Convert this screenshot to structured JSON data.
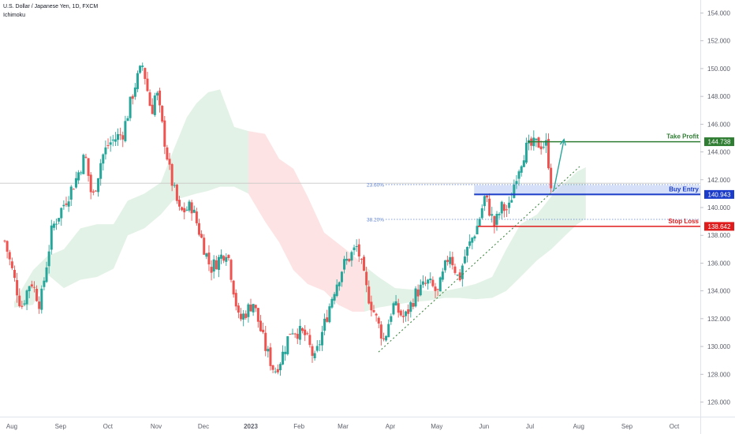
{
  "header": {
    "symbol_line": "U.S. Dollar / Japanese Yen, 1D, FXCM",
    "indicator": "Ichimoku"
  },
  "colors": {
    "up": "#26a69a",
    "down": "#ef5350",
    "cloud_bull": "#e3f2e6",
    "cloud_bear": "#fde3e3",
    "take_profit": "#2e7d32",
    "buy_entry": "#1a3cc8",
    "buy_zone": "#c9d6f7",
    "stop_loss": "#e01b1b",
    "fib": "#5b7fd4",
    "trendline": "#2e7d32",
    "arrow": "#26a69a",
    "axis_text": "#5d606b",
    "crosshair": "#c7c7c7"
  },
  "chart_data": {
    "type": "candlestick",
    "title": "U.S. Dollar / Japanese Yen, 1D, FXCM",
    "indicator": "Ichimoku",
    "ylim": [
      124.8,
      154.8
    ],
    "y_ticks": [
      "126.000",
      "128.000",
      "130.000",
      "132.000",
      "134.000",
      "136.000",
      "138.000",
      "140.000",
      "142.000",
      "144.000",
      "146.000",
      "148.000",
      "150.000",
      "152.000",
      "154.000"
    ],
    "x_ticks": [
      {
        "label": "Aug",
        "t": 0.15
      },
      {
        "label": "Sep",
        "t": 1.18
      },
      {
        "label": "Oct",
        "t": 2.18
      },
      {
        "label": "Nov",
        "t": 3.2
      },
      {
        "label": "Dec",
        "t": 4.2
      },
      {
        "label": "2023",
        "t": 5.2
      },
      {
        "label": "Feb",
        "t": 6.22
      },
      {
        "label": "Mar",
        "t": 7.15
      },
      {
        "label": "Apr",
        "t": 8.15
      },
      {
        "label": "May",
        "t": 9.13
      },
      {
        "label": "Jun",
        "t": 10.13
      },
      {
        "label": "Jul",
        "t": 11.1
      },
      {
        "label": "Aug",
        "t": 12.13
      },
      {
        "label": "Sep",
        "t": 13.15
      },
      {
        "label": "Oct",
        "t": 14.15
      }
    ],
    "t_range": [
      -0.1,
      14.7
    ],
    "price_path": [
      [
        0.0,
        137.6
      ],
      [
        0.35,
        132.8
      ],
      [
        0.55,
        134.8
      ],
      [
        0.75,
        133.0
      ],
      [
        1.0,
        138.5
      ],
      [
        1.5,
        142.0
      ],
      [
        1.7,
        143.8
      ],
      [
        1.85,
        140.5
      ],
      [
        2.05,
        143.6
      ],
      [
        2.2,
        144.6
      ],
      [
        2.5,
        145.4
      ],
      [
        2.75,
        148.8
      ],
      [
        2.92,
        150.3
      ],
      [
        3.1,
        146.8
      ],
      [
        3.2,
        148.5
      ],
      [
        3.5,
        142.3
      ],
      [
        3.7,
        139.6
      ],
      [
        3.95,
        140.1
      ],
      [
        4.35,
        135.6
      ],
      [
        4.7,
        137.0
      ],
      [
        4.95,
        131.8
      ],
      [
        5.25,
        133.2
      ],
      [
        5.5,
        130.0
      ],
      [
        5.7,
        128.2
      ],
      [
        5.85,
        129.2
      ],
      [
        6.05,
        131.3
      ],
      [
        6.35,
        130.8
      ],
      [
        6.55,
        129.0
      ],
      [
        6.95,
        134.0
      ],
      [
        7.15,
        135.8
      ],
      [
        7.45,
        137.2
      ],
      [
        7.65,
        134.0
      ],
      [
        7.9,
        131.5
      ],
      [
        8.02,
        130.4
      ],
      [
        8.2,
        133.0
      ],
      [
        8.45,
        132.0
      ],
      [
        8.7,
        133.9
      ],
      [
        8.95,
        134.6
      ],
      [
        9.15,
        133.8
      ],
      [
        9.4,
        136.8
      ],
      [
        9.6,
        134.7
      ],
      [
        9.7,
        136.3
      ],
      [
        10.0,
        138.8
      ],
      [
        10.15,
        140.8
      ],
      [
        10.35,
        138.7
      ],
      [
        10.5,
        140.0
      ],
      [
        10.65,
        139.8
      ],
      [
        10.8,
        142.3
      ],
      [
        11.0,
        144.2
      ],
      [
        11.25,
        144.6
      ],
      [
        11.45,
        144.5
      ],
      [
        11.55,
        141.6
      ]
    ],
    "cloud": [
      [
        0.2,
        132.8,
        133.2
      ],
      [
        0.6,
        133.0,
        135.5
      ],
      [
        0.9,
        135.2,
        136.5
      ],
      [
        1.25,
        134.2,
        137.0
      ],
      [
        1.6,
        134.8,
        138.5
      ],
      [
        1.95,
        135.0,
        138.8
      ],
      [
        2.3,
        135.6,
        138.8
      ],
      [
        2.6,
        138.0,
        140.5
      ],
      [
        2.95,
        138.5,
        141.0
      ],
      [
        3.3,
        139.5,
        141.8
      ],
      [
        3.55,
        140.5,
        144.0
      ],
      [
        3.85,
        140.8,
        146.5
      ],
      [
        4.05,
        141.0,
        147.5
      ],
      [
        4.3,
        141.2,
        148.3
      ],
      [
        4.55,
        141.5,
        148.5
      ],
      [
        4.85,
        141.5,
        145.8
      ],
      [
        5.15,
        141.0,
        145.5
      ],
      [
        5.5,
        139.0,
        145.3
      ],
      [
        5.8,
        137.5,
        143.5
      ],
      [
        6.1,
        135.5,
        142.8
      ],
      [
        6.4,
        134.5,
        140.8
      ],
      [
        6.75,
        134.0,
        138.2
      ],
      [
        7.05,
        133.0,
        137.4
      ],
      [
        7.35,
        132.5,
        136.6
      ],
      [
        7.6,
        132.5,
        135.8
      ],
      [
        7.9,
        132.8,
        135.0
      ],
      [
        8.25,
        133.0,
        134.2
      ],
      [
        8.6,
        133.2,
        134.1
      ],
      [
        8.95,
        133.3,
        134.0
      ],
      [
        9.3,
        133.5,
        134.0
      ],
      [
        9.6,
        133.5,
        134.2
      ],
      [
        9.95,
        133.4,
        134.5
      ],
      [
        10.3,
        133.5,
        135.0
      ],
      [
        10.6,
        134.0,
        137.0
      ],
      [
        10.9,
        135.0,
        138.8
      ],
      [
        11.25,
        136.2,
        139.5
      ],
      [
        11.55,
        137.0,
        140.8
      ],
      [
        11.85,
        138.0,
        141.8
      ],
      [
        12.1,
        138.8,
        142.6
      ],
      [
        12.28,
        139.2,
        142.9
      ]
    ],
    "levels": {
      "take_profit": {
        "label": "Take Profit",
        "value": "144.738",
        "price": 144.738,
        "t_start": 11.05
      },
      "buy_entry": {
        "label": "Buy Entry",
        "value": "140.943",
        "price": 140.943,
        "zone_top": 141.6,
        "t_start": 9.92
      },
      "stop_loss": {
        "label": "Stop Loss",
        "value": "138.642",
        "price": 138.642,
        "t_start": 10.0
      }
    },
    "fib_levels": [
      {
        "label": "23.60%",
        "price": 141.65,
        "t_start": 8.05
      },
      {
        "label": "38.20%",
        "price": 139.15,
        "t_start": 8.05
      }
    ],
    "current_price_line": 141.75,
    "trendline": {
      "t1": 7.9,
      "p1": 129.6,
      "t2": 12.15,
      "p2": 142.95
    },
    "arrow": {
      "t1": 11.6,
      "p1": 141.2,
      "t2": 11.82,
      "p2": 144.9
    }
  }
}
